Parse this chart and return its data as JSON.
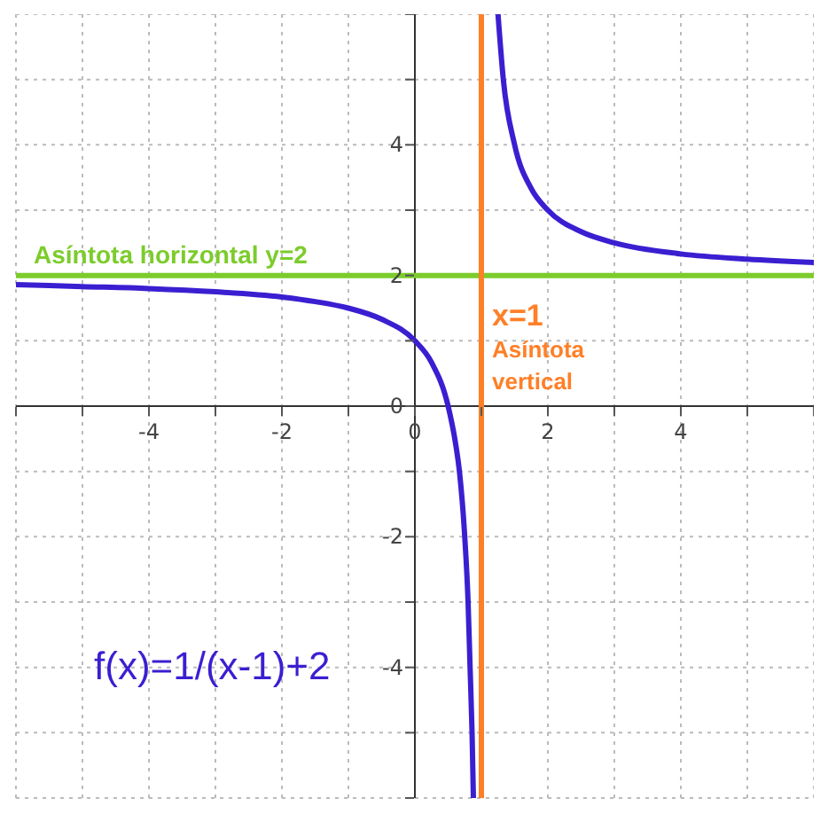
{
  "chart_data": {
    "type": "line",
    "x": [
      -6,
      -5,
      -4,
      -3,
      -2,
      -1.5,
      -1,
      -0.5,
      0,
      0.25,
      0.5,
      0.6,
      0.67,
      0.75,
      0.8,
      0.83,
      0.86,
      0.88,
      1,
      1.25,
      1.33,
      1.5,
      1.75,
      2,
      2.5,
      3,
      4,
      5,
      6
    ],
    "series": [
      {
        "color": "#3a1fd1",
        "values": [
          1.86,
          1.83,
          1.8,
          1.75,
          1.67,
          1.6,
          1.5,
          1.33,
          1,
          0.67,
          0,
          -0.5,
          -1,
          -2,
          -3,
          -4,
          -5,
          -6,
          null,
          6,
          5,
          4,
          3.33,
          3,
          2.67,
          2.5,
          2.33,
          2.25,
          2.2
        ]
      }
    ],
    "xlim": [
      -6,
      6
    ],
    "ylim": [
      -6,
      6
    ],
    "xticks": [
      {
        "value": -6,
        "label": null
      },
      {
        "value": -5,
        "label": null
      },
      -4,
      {
        "value": -3,
        "label": null
      },
      -2,
      {
        "value": -1,
        "label": null
      },
      0,
      {
        "value": 1,
        "label": null
      },
      2,
      {
        "value": 3,
        "label": null
      },
      4,
      {
        "value": 5,
        "label": null
      },
      {
        "value": 6,
        "label": null
      }
    ],
    "yticks": [
      {
        "value": -6,
        "label": null
      },
      {
        "value": -5,
        "label": null
      },
      -4,
      {
        "value": -3,
        "label": null
      },
      -2,
      {
        "value": -1,
        "label": null
      },
      0,
      {
        "value": 1,
        "label": null
      },
      2,
      {
        "value": 3,
        "label": null
      },
      4,
      {
        "value": 5,
        "label": null
      },
      {
        "value": 6,
        "label": null
      }
    ],
    "grid": true,
    "marker": "none",
    "line_style": "solid",
    "ref_lines": [
      {
        "axis": "y",
        "value": 2,
        "label": "Asíntota horizontal  y=2",
        "color": "#7ccc2c"
      },
      {
        "axis": "x",
        "value": 1,
        "label": "x=1 Asíntota vertical",
        "color": "#ff7f27"
      }
    ],
    "annotations": [
      "f(x)=1/(x-1)+2"
    ]
  }
}
